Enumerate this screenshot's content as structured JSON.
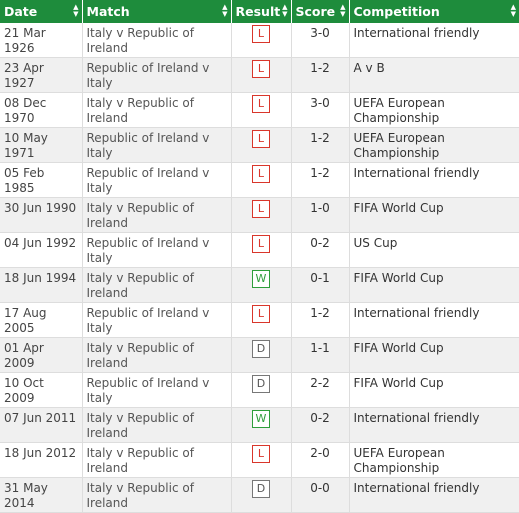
{
  "headers": {
    "date": "Date",
    "match": "Match",
    "result": "Result",
    "score": "Score",
    "competition": "Competition"
  },
  "result_colors": {
    "L": "#d9362b",
    "W": "#2e9e3a",
    "D": "#777777"
  },
  "header_color": "#1e8c3c",
  "rows": [
    {
      "date": "21 Mar 1926",
      "match": "Italy v Republic of Ireland",
      "result": "L",
      "score": "3-0",
      "competition": "International friendly"
    },
    {
      "date": "23 Apr 1927",
      "match": "Republic of Ireland v Italy",
      "result": "L",
      "score": "1-2",
      "competition": "A v B"
    },
    {
      "date": "08 Dec 1970",
      "match": "Italy v Republic of Ireland",
      "result": "L",
      "score": "3-0",
      "competition": "UEFA European Championship"
    },
    {
      "date": "10 May 1971",
      "match": "Republic of Ireland v Italy",
      "result": "L",
      "score": "1-2",
      "competition": "UEFA European Championship"
    },
    {
      "date": "05 Feb 1985",
      "match": "Republic of Ireland v Italy",
      "result": "L",
      "score": "1-2",
      "competition": "International friendly"
    },
    {
      "date": "30 Jun 1990",
      "match": "Italy v Republic of Ireland",
      "result": "L",
      "score": "1-0",
      "competition": "FIFA World Cup"
    },
    {
      "date": "04 Jun 1992",
      "match": "Republic of Ireland v Italy",
      "result": "L",
      "score": "0-2",
      "competition": "US Cup"
    },
    {
      "date": "18 Jun 1994",
      "match": "Italy v Republic of Ireland",
      "result": "W",
      "score": "0-1",
      "competition": "FIFA World Cup"
    },
    {
      "date": "17 Aug 2005",
      "match": "Republic of Ireland v Italy",
      "result": "L",
      "score": "1-2",
      "competition": "International friendly"
    },
    {
      "date": "01 Apr 2009",
      "match": "Italy v Republic of Ireland",
      "result": "D",
      "score": "1-1",
      "competition": "FIFA World Cup"
    },
    {
      "date": "10 Oct 2009",
      "match": "Republic of Ireland v Italy",
      "result": "D",
      "score": "2-2",
      "competition": "FIFA World Cup"
    },
    {
      "date": "07 Jun 2011",
      "match": "Italy v Republic of Ireland",
      "result": "W",
      "score": "0-2",
      "competition": "International friendly"
    },
    {
      "date": "18 Jun 2012",
      "match": "Italy v Republic of Ireland",
      "result": "L",
      "score": "2-0",
      "competition": "UEFA European Championship"
    },
    {
      "date": "31 May 2014",
      "match": "Italy v Republic of Ireland",
      "result": "D",
      "score": "0-0",
      "competition": "International friendly"
    }
  ]
}
